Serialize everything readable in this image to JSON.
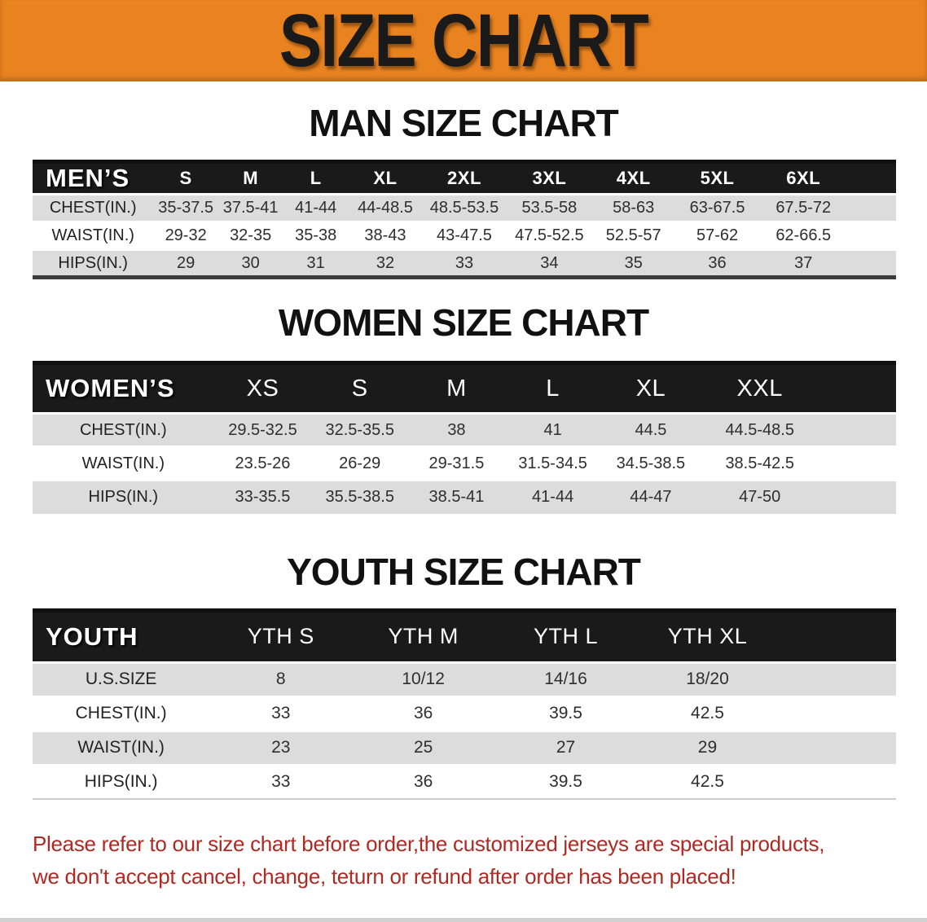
{
  "banner": {
    "title": "SIZE CHART"
  },
  "colors": {
    "banner_bg": "#E98320",
    "banner_text": "#1A1A1A",
    "table_header_bg": "#1A1A1A",
    "table_header_text": "#FFFFFF",
    "row_stripe": "#DCDCDC",
    "body_text": "#2E2E2E",
    "footer_text": "#AE2A22"
  },
  "sections": [
    {
      "id": "men",
      "heading": "MAN SIZE CHART"
    },
    {
      "id": "women",
      "heading": "WOMEN SIZE CHART"
    },
    {
      "id": "youth",
      "heading": "YOUTH SIZE CHART"
    }
  ],
  "chart_data": [
    {
      "type": "table",
      "title": "MAN SIZE CHART",
      "corner_label": "MEN’S",
      "columns": [
        "S",
        "M",
        "L",
        "XL",
        "2XL",
        "3XL",
        "4XL",
        "5XL",
        "6XL"
      ],
      "rows": [
        {
          "label": "CHEST(IN.)",
          "values": [
            "35-37.5",
            "37.5-41",
            "41-44",
            "44-48.5",
            "48.5-53.5",
            "53.5-58",
            "58-63",
            "63-67.5",
            "67.5-72"
          ]
        },
        {
          "label": "WAIST(IN.)",
          "values": [
            "29-32",
            "32-35",
            "35-38",
            "38-43",
            "43-47.5",
            "47.5-52.5",
            "52.5-57",
            "57-62",
            "62-66.5"
          ]
        },
        {
          "label": "HIPS(IN.)",
          "values": [
            "29",
            "30",
            "31",
            "32",
            "33",
            "34",
            "35",
            "36",
            "37"
          ]
        }
      ]
    },
    {
      "type": "table",
      "title": "WOMEN SIZE CHART",
      "corner_label": "WOMEN’S",
      "columns": [
        "XS",
        "S",
        "M",
        "L",
        "XL",
        "XXL"
      ],
      "rows": [
        {
          "label": "CHEST(IN.)",
          "values": [
            "29.5-32.5",
            "32.5-35.5",
            "38",
            "41",
            "44.5",
            "44.5-48.5"
          ]
        },
        {
          "label": "WAIST(IN.)",
          "values": [
            "23.5-26",
            "26-29",
            "29-31.5",
            "31.5-34.5",
            "34.5-38.5",
            "38.5-42.5"
          ]
        },
        {
          "label": "HIPS(IN.)",
          "values": [
            "33-35.5",
            "35.5-38.5",
            "38.5-41",
            "41-44",
            "44-47",
            "47-50"
          ]
        }
      ]
    },
    {
      "type": "table",
      "title": "YOUTH SIZE CHART",
      "corner_label": "YOUTH",
      "columns": [
        "YTH S",
        "YTH M",
        "YTH L",
        "YTH XL"
      ],
      "rows": [
        {
          "label": "U.S.SIZE",
          "values": [
            "8",
            "10/12",
            "14/16",
            "18/20"
          ]
        },
        {
          "label": "CHEST(IN.)",
          "values": [
            "33",
            "36",
            "39.5",
            "42.5"
          ]
        },
        {
          "label": "WAIST(IN.)",
          "values": [
            "23",
            "25",
            "27",
            "29"
          ]
        },
        {
          "label": "HIPS(IN.)",
          "values": [
            "33",
            "36",
            "39.5",
            "42.5"
          ]
        }
      ]
    }
  ],
  "footer": {
    "line1": "Please refer to our size chart before order,the customized jerseys are special products,",
    "line2": "we don't accept cancel, change, teturn or refund after order has been placed!"
  }
}
